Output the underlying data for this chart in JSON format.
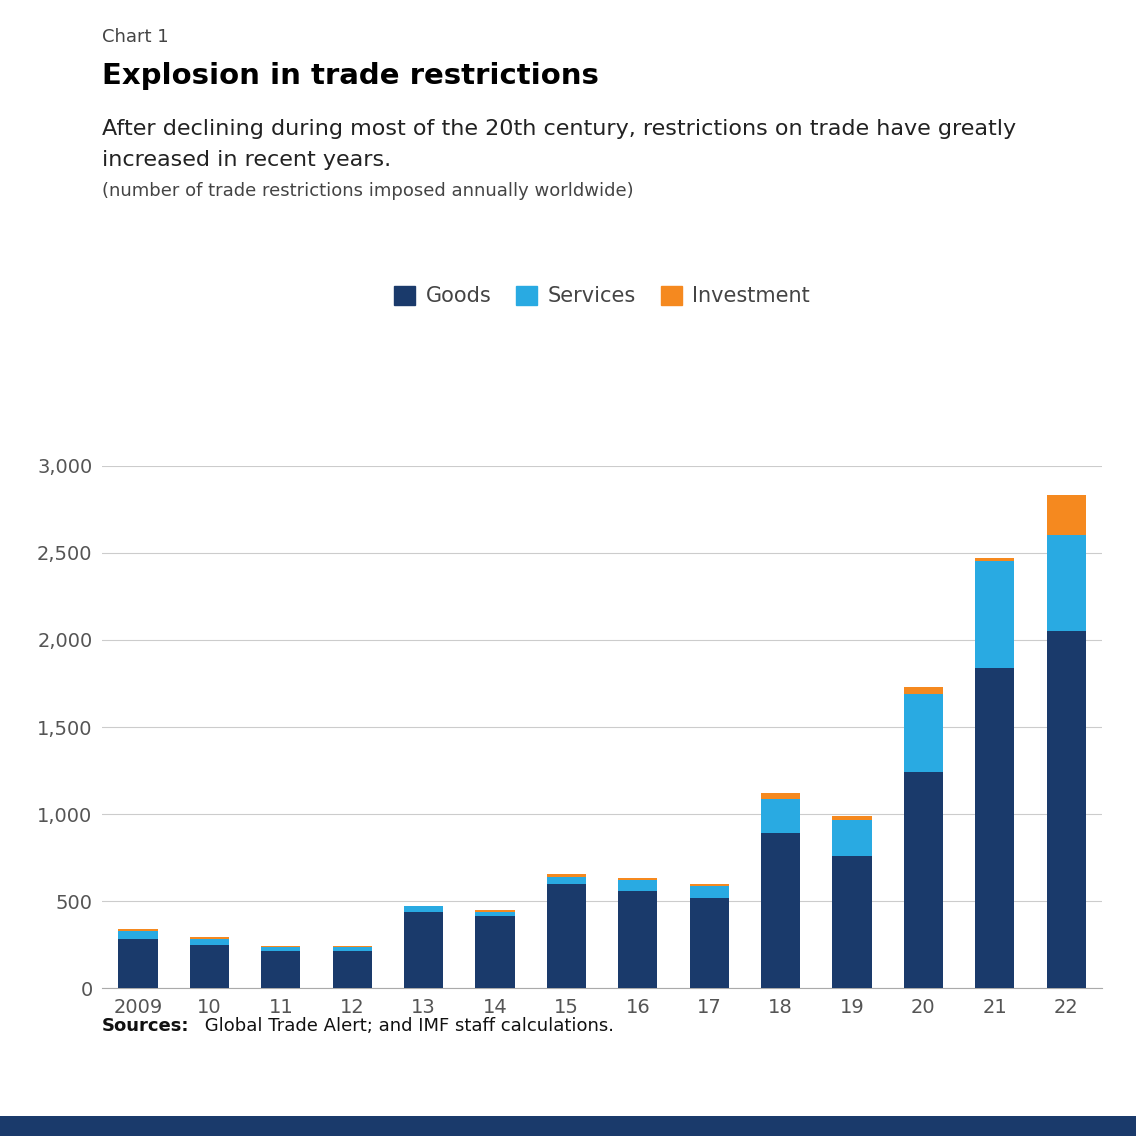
{
  "chart_label": "Chart 1",
  "title": "Explosion in trade restrictions",
  "subtitle_line1": "After declining during most of the 20th century, restrictions on trade have greatly",
  "subtitle_line2": "increased in recent years.",
  "sub_subtitle": "(number of trade restrictions imposed annually worldwide)",
  "years": [
    "2009",
    "10",
    "11",
    "12",
    "13",
    "14",
    "15",
    "16",
    "17",
    "18",
    "19",
    "20",
    "21",
    "22"
  ],
  "goods": [
    285,
    250,
    215,
    215,
    440,
    415,
    600,
    560,
    520,
    890,
    760,
    1240,
    1840,
    2050
  ],
  "services": [
    45,
    35,
    25,
    25,
    30,
    25,
    40,
    60,
    65,
    195,
    205,
    450,
    615,
    555
  ],
  "investment": [
    10,
    10,
    5,
    5,
    5,
    10,
    15,
    15,
    15,
    35,
    25,
    40,
    15,
    230
  ],
  "goods_color": "#1a3a6b",
  "services_color": "#29aae2",
  "investment_color": "#f5891f",
  "background_color": "#ffffff",
  "ylim": [
    0,
    3000
  ],
  "yticks": [
    0,
    500,
    1000,
    1500,
    2000,
    2500,
    3000
  ],
  "bar_width": 0.55,
  "bottom_bar_color": "#1a3a6b"
}
